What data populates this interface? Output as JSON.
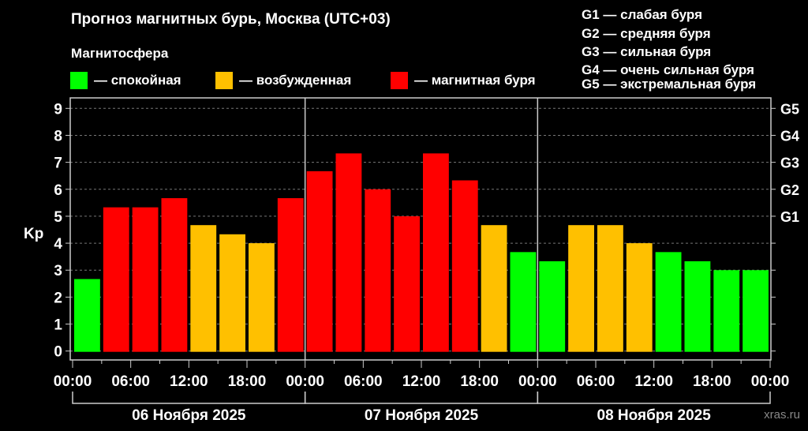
{
  "title": "Прогноз магнитных бурь, Москва (UTC+03)",
  "legend_title": "Магнитосфера",
  "legend": [
    {
      "label": "— спокойная",
      "color": "#00ff00"
    },
    {
      "label": "— возбужденная",
      "color": "#ffc000"
    },
    {
      "label": "— магнитная буря",
      "color": "#ff0000"
    }
  ],
  "g_scale": [
    "G1 — слабая буря",
    "G2 — средняя буря",
    "G3 — сильная буря",
    "G4 — очень сильная буря",
    "G5 — экстремальная буря"
  ],
  "watermark": "xras.ru",
  "chart_data": {
    "type": "bar",
    "ylabel": "Kp",
    "ylim": [
      0,
      9
    ],
    "yticks": [
      "0",
      "1",
      "2",
      "3",
      "4",
      "5",
      "6",
      "7",
      "8",
      "9"
    ],
    "right_ticks": {
      "5": "G1",
      "6": "G2",
      "7": "G3",
      "8": "G4",
      "9": "G5"
    },
    "xticks": [
      "00:00",
      "06:00",
      "12:00",
      "18:00",
      "00:00",
      "06:00",
      "12:00",
      "18:00",
      "00:00",
      "06:00",
      "12:00",
      "18:00",
      "00:00"
    ],
    "days": [
      "06 Ноября 2025",
      "07 Ноября 2025",
      "08 Ноября 2025"
    ],
    "grid": true,
    "values": [
      2.67,
      5.33,
      5.33,
      5.67,
      4.67,
      4.33,
      4.0,
      5.67,
      6.67,
      7.33,
      6.0,
      5.0,
      7.33,
      6.33,
      4.67,
      3.67,
      3.33,
      4.67,
      4.67,
      4.0,
      3.67,
      3.33,
      3.0,
      3.0
    ],
    "colors": {
      "quiet": "#00ff00",
      "active": "#ffc000",
      "storm": "#ff0000"
    }
  }
}
